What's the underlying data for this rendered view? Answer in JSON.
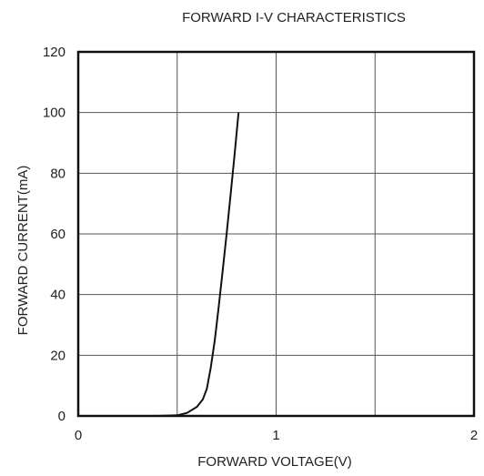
{
  "chart_data": {
    "type": "line",
    "title": "FORWARD I-V CHARACTERISTICS",
    "xlabel": "FORWARD VOLTAGE(V)",
    "ylabel": "FORWARD CURRENT(mA)",
    "xlim": [
      0,
      2
    ],
    "ylim": [
      0,
      120
    ],
    "x_ticks": [
      "0",
      "1",
      "2"
    ],
    "y_ticks": [
      "0",
      "20",
      "40",
      "60",
      "80",
      "100",
      "120"
    ],
    "x_gridlines": [
      0.5,
      1.0,
      1.5
    ],
    "y_gridlines": [
      20,
      40,
      60,
      80,
      100
    ],
    "grid": true,
    "legend": "none",
    "series": [
      {
        "x": [
          0.0,
          0.4,
          0.5,
          0.55,
          0.6,
          0.63,
          0.65,
          0.67,
          0.69,
          0.71,
          0.73,
          0.75,
          0.77,
          0.79,
          0.81
        ],
        "y": [
          0,
          0,
          0.2,
          1,
          3,
          5.5,
          9,
          16,
          25,
          36,
          48,
          60,
          73,
          86,
          100
        ]
      }
    ],
    "colors": {
      "line": "#111111",
      "grid": "#555555",
      "frame": "#111111",
      "background": "#ffffff"
    }
  }
}
